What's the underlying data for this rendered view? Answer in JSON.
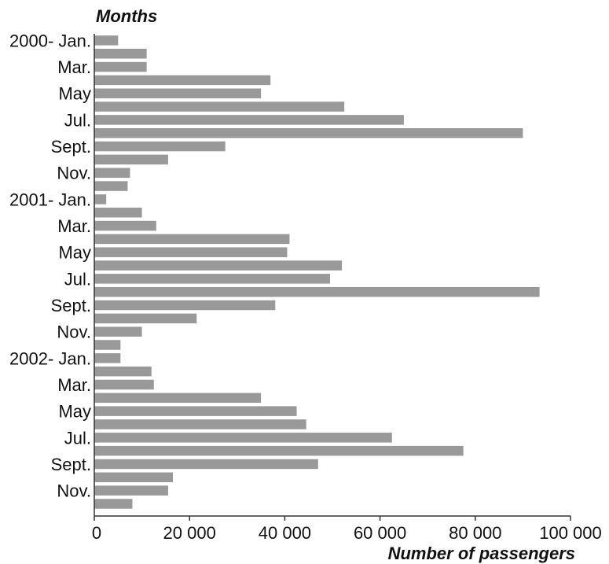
{
  "chart_data": {
    "type": "bar",
    "orientation": "horizontal",
    "ylabel": "Months",
    "xlabel": "Number of passengers",
    "xlim": [
      0,
      100000
    ],
    "x_ticks": [
      0,
      20000,
      40000,
      60000,
      80000,
      100000
    ],
    "x_tick_labels": [
      "0",
      "20 000",
      "40 000",
      "60 000",
      "80 000",
      "100 000"
    ],
    "categories": [
      "2000-01",
      "2000-02",
      "2000-03",
      "2000-04",
      "2000-05",
      "2000-06",
      "2000-07",
      "2000-08",
      "2000-09",
      "2000-10",
      "2000-11",
      "2000-12",
      "2001-01",
      "2001-02",
      "2001-03",
      "2001-04",
      "2001-05",
      "2001-06",
      "2001-07",
      "2001-08",
      "2001-09",
      "2001-10",
      "2001-11",
      "2001-12",
      "2002-01",
      "2002-02",
      "2002-03",
      "2002-04",
      "2002-05",
      "2002-06",
      "2002-07",
      "2002-08",
      "2002-09",
      "2002-10",
      "2002-11",
      "2002-12"
    ],
    "category_labels": [
      "2000- Jan.",
      "",
      "Mar.",
      "",
      "May",
      "",
      "Jul.",
      "",
      "Sept.",
      "",
      "Nov.",
      "",
      "2001- Jan.",
      "",
      "Mar.",
      "",
      "May",
      "",
      "Jul.",
      "",
      "Sept.",
      "",
      "Nov.",
      "",
      "2002- Jan.",
      "",
      "Mar.",
      "",
      "May",
      "",
      "Jul.",
      "",
      "Sept.",
      "",
      "Nov.",
      ""
    ],
    "values": [
      5000,
      11000,
      11000,
      37000,
      35000,
      52500,
      65000,
      90000,
      27500,
      15500,
      7500,
      7000,
      2500,
      10000,
      13000,
      41000,
      40500,
      52000,
      49500,
      93500,
      38000,
      21500,
      10000,
      5500,
      5500,
      12000,
      12500,
      35000,
      42500,
      44500,
      62500,
      77500,
      47000,
      16500,
      15500,
      8000
    ],
    "bar_color": "#999999",
    "grid": false
  }
}
